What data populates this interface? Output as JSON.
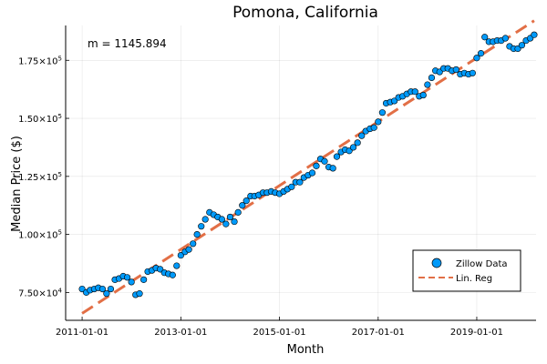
{
  "chart_data": {
    "type": "scatter",
    "title": "Pomona, California",
    "xlabel": "Month",
    "ylabel": "Median Price ($)",
    "annotation": "m = 1145.894",
    "x_start": "2011-01-01",
    "x_range": [
      "2010-09-01",
      "2020-03-15"
    ],
    "ylim": [
      63000,
      190000
    ],
    "x_ticks": [
      {
        "value": "2011-01-01",
        "label": "2011-01-01"
      },
      {
        "value": "2013-01-01",
        "label": "2013-01-01"
      },
      {
        "value": "2015-01-01",
        "label": "2015-01-01"
      },
      {
        "value": "2017-01-01",
        "label": "2017-01-01"
      },
      {
        "value": "2019-01-01",
        "label": "2019-01-01"
      }
    ],
    "y_ticks": [
      {
        "value": 75000,
        "mantissa": "7.50",
        "exponent": "4"
      },
      {
        "value": 100000,
        "mantissa": "1.00",
        "exponent": "5"
      },
      {
        "value": 125000,
        "mantissa": "1.25",
        "exponent": "5"
      },
      {
        "value": 150000,
        "mantissa": "1.50",
        "exponent": "5"
      },
      {
        "value": 175000,
        "mantissa": "1.75",
        "exponent": "5"
      }
    ],
    "grid": true,
    "legend_position": "bottom-right",
    "series": [
      {
        "name": "Zillow Data",
        "kind": "scatter",
        "color": "#009AFA",
        "y": [
          76500,
          75000,
          76000,
          76500,
          77000,
          76500,
          74500,
          76500,
          80500,
          81000,
          82000,
          81500,
          79500,
          74000,
          74500,
          80500,
          84000,
          84500,
          85500,
          85000,
          83500,
          83000,
          82500,
          86500,
          91000,
          92500,
          93500,
          96000,
          100000,
          103500,
          106500,
          109500,
          108500,
          107500,
          106500,
          104500,
          107500,
          105500,
          109500,
          112500,
          114500,
          116500,
          116500,
          117000,
          118000,
          118000,
          118500,
          118000,
          117500,
          118500,
          119500,
          120500,
          122500,
          122500,
          124500,
          125500,
          126500,
          129500,
          132500,
          131500,
          129000,
          128500,
          133500,
          135500,
          136500,
          136000,
          137500,
          139500,
          142500,
          144500,
          145500,
          146000,
          148500,
          152500,
          156500,
          157000,
          157500,
          159000,
          159500,
          160500,
          161500,
          161500,
          159500,
          160000,
          164500,
          167500,
          170500,
          170000,
          171500,
          171500,
          170500,
          171000,
          169000,
          169500,
          169000,
          169500,
          176000,
          178000,
          185000,
          183000,
          183000,
          183500,
          183500,
          184500,
          181000,
          180000,
          180000,
          181500,
          183500,
          184500,
          186000
        ]
      },
      {
        "name": "Lin. Reg",
        "kind": "line",
        "color": "#E26F46",
        "slope_per_month": 1145.894,
        "y_start": 66000
      }
    ]
  }
}
